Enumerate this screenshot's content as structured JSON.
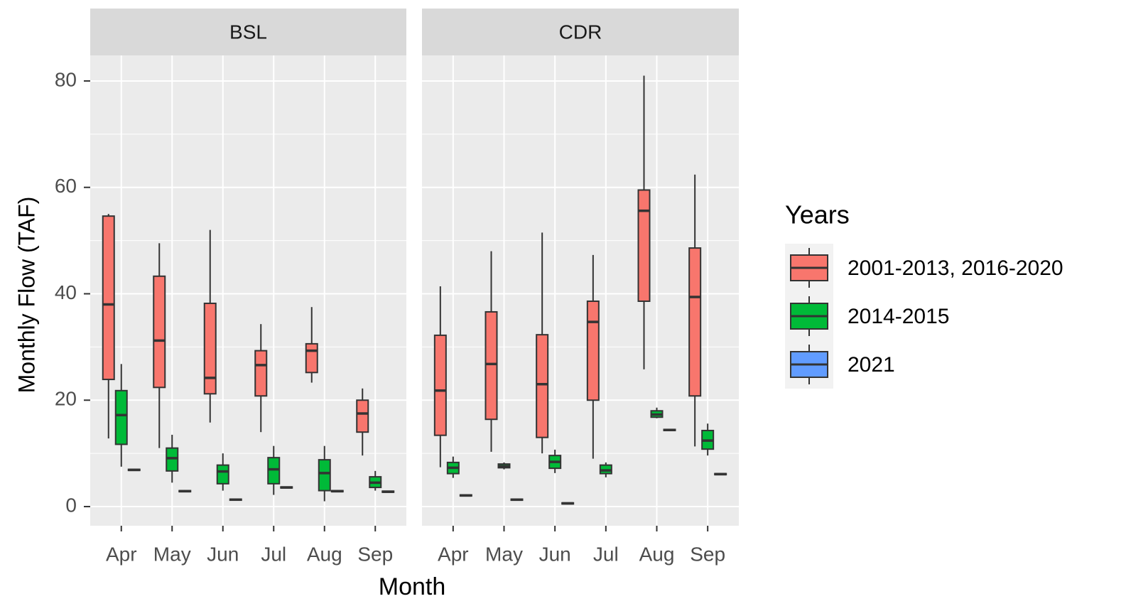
{
  "chart_data": {
    "type": "box",
    "y_label": "Monthly Flow (TAF)",
    "x_label": "Month",
    "legend_title": "Years",
    "categories": [
      "Apr",
      "May",
      "Jun",
      "Jul",
      "Aug",
      "Sep"
    ],
    "series": [
      {
        "name": "2001-2013, 2016-2020",
        "color": "#F8766D"
      },
      {
        "name": "2014-2015",
        "color": "#00BA38"
      },
      {
        "name": "2021",
        "color": "#619CFF"
      }
    ],
    "ylim": [
      -3.6,
      84.8
    ],
    "yticks": [
      0,
      20,
      40,
      60,
      80
    ],
    "grid": true,
    "facets": [
      {
        "title": "BSL",
        "series": [
          {
            "values": [
              {
                "min": 12.8,
                "q1": 23.9,
                "median": 38,
                "q3": 54.6,
                "max": 55
              },
              {
                "min": 11,
                "q1": 22.4,
                "median": 31.2,
                "q3": 43.3,
                "max": 49.5
              },
              {
                "min": 15.8,
                "q1": 21.2,
                "median": 24.2,
                "q3": 38.2,
                "max": 52
              },
              {
                "min": 14,
                "q1": 20.8,
                "median": 26.6,
                "q3": 29.3,
                "max": 34.3
              },
              {
                "min": 23.3,
                "q1": 25.2,
                "median": 29.3,
                "q3": 30.6,
                "max": 37.5
              },
              {
                "min": 9.6,
                "q1": 14,
                "median": 17.5,
                "q3": 20,
                "max": 22.2
              }
            ]
          },
          {
            "values": [
              {
                "min": 7.5,
                "q1": 11.7,
                "median": 17.2,
                "q3": 21.8,
                "max": 26.8
              },
              {
                "min": 4.5,
                "q1": 6.7,
                "median": 9.1,
                "q3": 11,
                "max": 13.5
              },
              {
                "min": 3,
                "q1": 4.3,
                "median": 6.6,
                "q3": 7.8,
                "max": 10
              },
              {
                "min": 2.2,
                "q1": 4.3,
                "median": 7,
                "q3": 9.2,
                "max": 11.4
              },
              {
                "min": 1,
                "q1": 3,
                "median": 6.3,
                "q3": 8.8,
                "max": 11.4
              },
              {
                "min": 3,
                "q1": 3.6,
                "median": 4.5,
                "q3": 5.6,
                "max": 6.7
              }
            ]
          },
          {
            "values": [
              {
                "min": 6.7,
                "q1": 6.8,
                "median": 6.9,
                "q3": 7,
                "max": 7.1
              },
              {
                "min": 2.7,
                "q1": 2.8,
                "median": 2.9,
                "q3": 3,
                "max": 3.1
              },
              {
                "min": 1.1,
                "q1": 1.2,
                "median": 1.3,
                "q3": 1.4,
                "max": 1.5
              },
              {
                "min": 3.4,
                "q1": 3.5,
                "median": 3.6,
                "q3": 3.7,
                "max": 3.8
              },
              {
                "min": 2.7,
                "q1": 2.8,
                "median": 2.9,
                "q3": 3,
                "max": 3.1
              },
              {
                "min": 2.6,
                "q1": 2.7,
                "median": 2.8,
                "q3": 2.9,
                "max": 3
              }
            ]
          }
        ]
      },
      {
        "title": "CDR",
        "series": [
          {
            "values": [
              {
                "min": 7.4,
                "q1": 13.4,
                "median": 21.8,
                "q3": 32.2,
                "max": 41.4
              },
              {
                "min": 10.3,
                "q1": 16.4,
                "median": 26.8,
                "q3": 36.6,
                "max": 48
              },
              {
                "min": 10,
                "q1": 13,
                "median": 23,
                "q3": 32.3,
                "max": 51.5
              },
              {
                "min": 9,
                "q1": 20,
                "median": 34.7,
                "q3": 38.6,
                "max": 47.3
              },
              {
                "min": 25.8,
                "q1": 38.6,
                "median": 55.6,
                "q3": 59.5,
                "max": 81
              },
              {
                "min": 11.3,
                "q1": 20.8,
                "median": 39.4,
                "q3": 48.6,
                "max": 62.4
              }
            ]
          },
          {
            "values": [
              {
                "min": 5.4,
                "q1": 6.2,
                "median": 7.3,
                "q3": 8.3,
                "max": 9.4
              },
              {
                "min": 7,
                "q1": 7.3,
                "median": 7.6,
                "q3": 8,
                "max": 8.3
              },
              {
                "min": 6.3,
                "q1": 7.2,
                "median": 8.4,
                "q3": 9.6,
                "max": 10.7
              },
              {
                "min": 5.5,
                "q1": 6.2,
                "median": 6.8,
                "q3": 7.8,
                "max": 8.3
              },
              {
                "min": 16.6,
                "q1": 16.8,
                "median": 17.3,
                "q3": 18,
                "max": 18.6
              },
              {
                "min": 9.6,
                "q1": 10.8,
                "median": 12.4,
                "q3": 14.3,
                "max": 15.6
              }
            ]
          },
          {
            "values": [
              {
                "min": 1.9,
                "q1": 2,
                "median": 2.1,
                "q3": 2.2,
                "max": 2.3
              },
              {
                "min": 1.1,
                "q1": 1.2,
                "median": 1.3,
                "q3": 1.4,
                "max": 1.5
              },
              {
                "min": 0.4,
                "q1": 0.5,
                "median": 0.6,
                "q3": 0.7,
                "max": 0.8
              },
              null,
              {
                "min": 14.2,
                "q1": 14.3,
                "median": 14.4,
                "q3": 14.5,
                "max": 14.6
              },
              {
                "min": 5.9,
                "q1": 6,
                "median": 6.1,
                "q3": 6.2,
                "max": 6.3
              }
            ]
          }
        ]
      }
    ]
  }
}
